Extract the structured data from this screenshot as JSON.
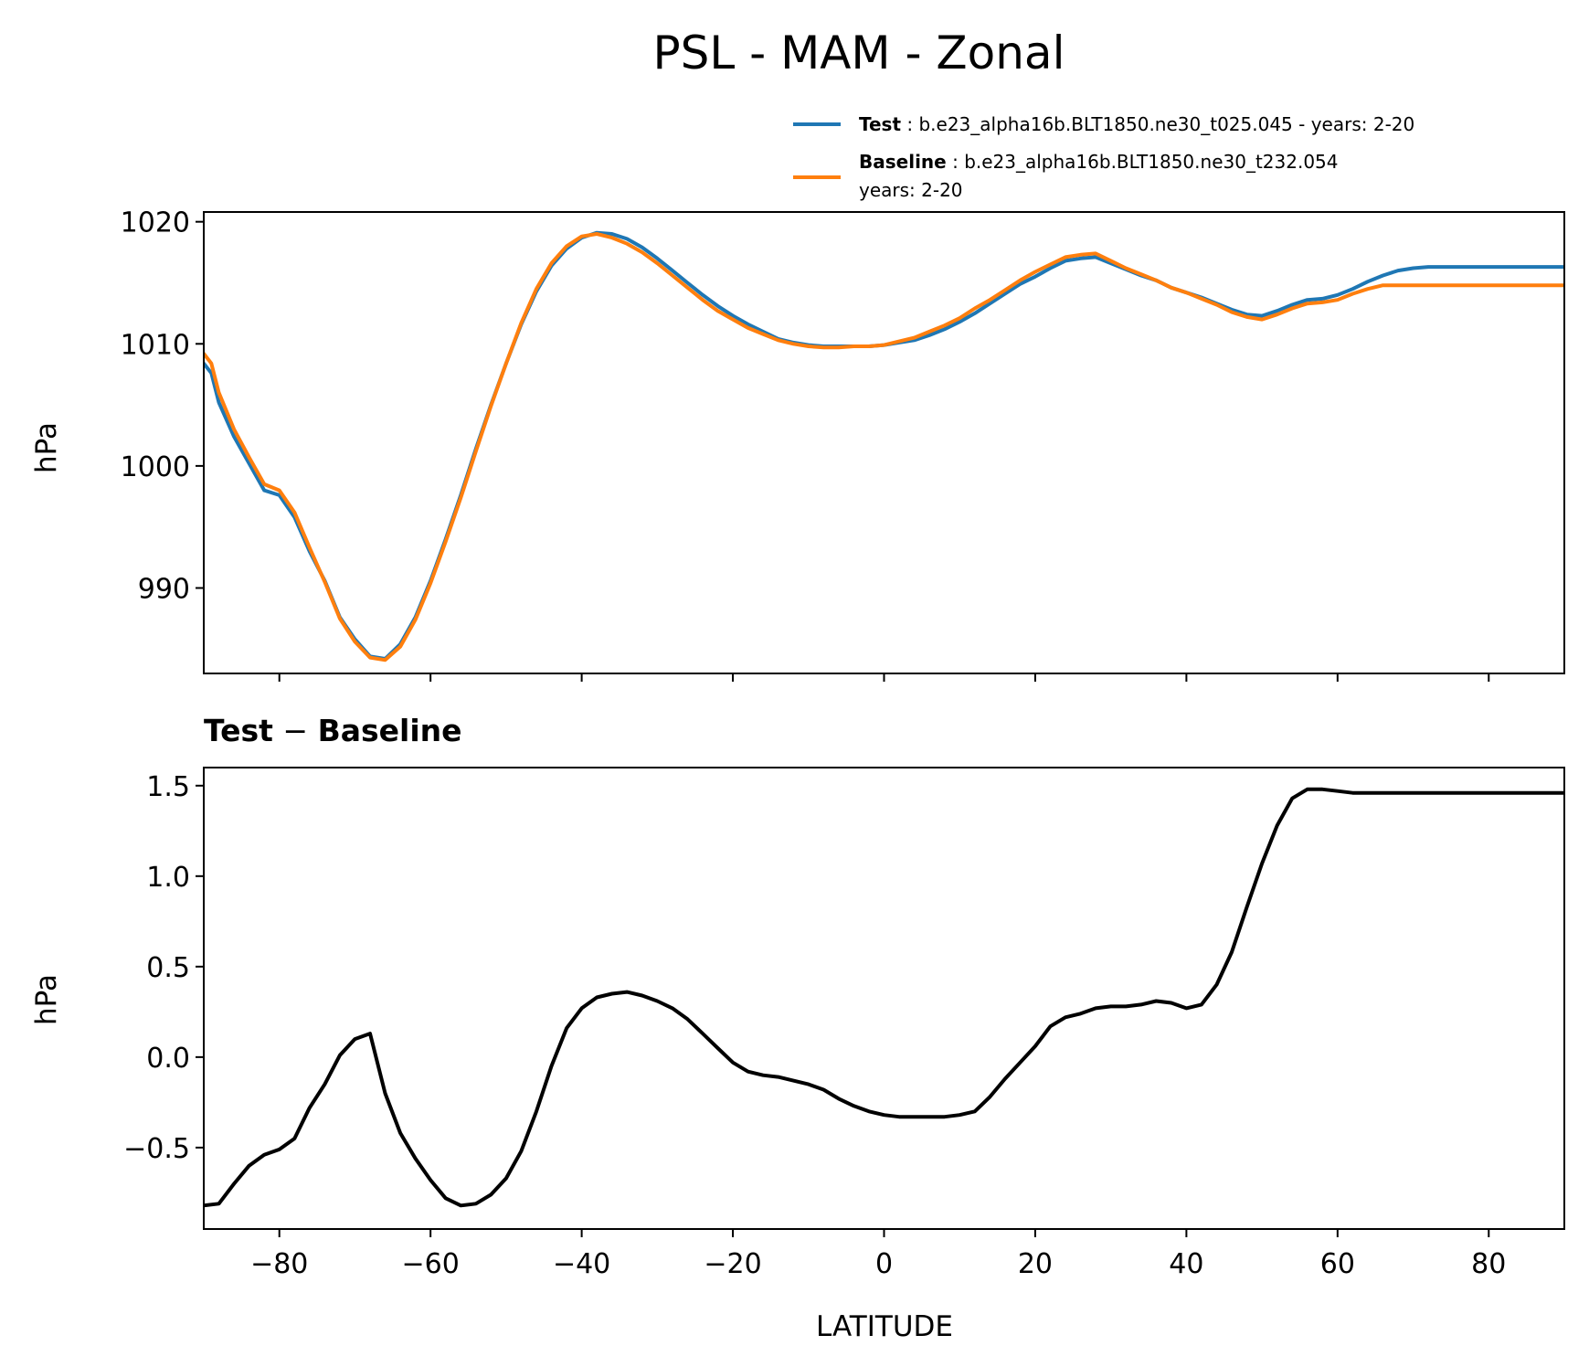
{
  "figure": {
    "title": "PSL - MAM - Zonal"
  },
  "legend": {
    "test": {
      "bold": "Test",
      "sep": " : ",
      "text": "b.e23_alpha16b.BLT1850.ne30_t025.045 - years: 2-20",
      "color": "#1f77b4"
    },
    "baseline": {
      "bold": "Baseline",
      "sep": " : ",
      "text": "b.e23_alpha16b.BLT1850.ne30_t232.054",
      "text2": "years: 2-20",
      "color": "#ff7f0e"
    }
  },
  "chart_data": [
    {
      "type": "line",
      "title": "",
      "xlabel": "",
      "ylabel": "hPa",
      "xlim": [
        -90,
        90
      ],
      "ylim": [
        983,
        1020.8
      ],
      "yticks": [
        990,
        1000,
        1010,
        1020
      ],
      "xticks": [
        -80,
        -60,
        -40,
        -20,
        0,
        20,
        40,
        60,
        80
      ],
      "x": [
        -90,
        -89,
        -88,
        -86,
        -84,
        -82,
        -80,
        -78,
        -76,
        -74,
        -72,
        -70,
        -68,
        -66,
        -64,
        -62,
        -60,
        -58,
        -56,
        -54,
        -52,
        -50,
        -48,
        -46,
        -44,
        -42,
        -40,
        -38,
        -36,
        -34,
        -32,
        -30,
        -28,
        -26,
        -24,
        -22,
        -20,
        -18,
        -16,
        -14,
        -12,
        -10,
        -8,
        -6,
        -4,
        -2,
        0,
        2,
        4,
        6,
        8,
        10,
        12,
        14,
        16,
        18,
        20,
        22,
        24,
        26,
        28,
        30,
        32,
        34,
        36,
        38,
        40,
        42,
        44,
        46,
        48,
        50,
        52,
        54,
        56,
        58,
        60,
        62,
        64,
        66,
        68,
        70,
        72,
        74,
        76,
        78,
        80,
        82,
        84,
        86,
        88,
        90
      ],
      "series": [
        {
          "name": "Test",
          "color": "#1f77b4",
          "values": [
            1008.4,
            1007.6,
            1005.2,
            1002.4,
            1000.2,
            998.0,
            997.6,
            995.8,
            993.0,
            990.6,
            987.6,
            985.8,
            984.4,
            984.2,
            985.4,
            987.6,
            990.6,
            994.0,
            997.6,
            1001.4,
            1005.0,
            1008.4,
            1011.6,
            1014.3,
            1016.4,
            1017.8,
            1018.7,
            1019.1,
            1019.0,
            1018.6,
            1017.9,
            1017.0,
            1016.0,
            1015.0,
            1014.0,
            1013.1,
            1012.3,
            1011.6,
            1011.0,
            1010.4,
            1010.1,
            1009.9,
            1009.8,
            1009.8,
            1009.8,
            1009.8,
            1009.9,
            1010.1,
            1010.3,
            1010.7,
            1011.2,
            1011.8,
            1012.5,
            1013.3,
            1014.1,
            1014.9,
            1015.5,
            1016.2,
            1016.8,
            1017.0,
            1017.1,
            1016.6,
            1016.1,
            1015.6,
            1015.2,
            1014.6,
            1014.2,
            1013.8,
            1013.3,
            1012.8,
            1012.4,
            1012.3,
            1012.7,
            1013.2,
            1013.6,
            1013.7,
            1014.0,
            1014.5,
            1015.1,
            1015.6,
            1016.0,
            1016.2,
            1016.3,
            1016.3,
            1016.3,
            1016.3,
            1016.3,
            1016.3,
            1016.3,
            1016.3,
            1016.3,
            1016.3
          ]
        },
        {
          "name": "Baseline",
          "color": "#ff7f0e",
          "values": [
            1009.2,
            1008.4,
            1006.0,
            1003.0,
            1000.7,
            998.5,
            998.0,
            996.2,
            993.3,
            990.5,
            987.5,
            985.6,
            984.3,
            984.1,
            985.2,
            987.4,
            990.4,
            993.8,
            997.4,
            1001.2,
            1004.9,
            1008.4,
            1011.7,
            1014.5,
            1016.6,
            1018.0,
            1018.8,
            1019.0,
            1018.7,
            1018.2,
            1017.5,
            1016.6,
            1015.6,
            1014.6,
            1013.6,
            1012.7,
            1012.0,
            1011.3,
            1010.8,
            1010.3,
            1010.0,
            1009.8,
            1009.7,
            1009.7,
            1009.8,
            1009.8,
            1009.9,
            1010.2,
            1010.5,
            1011.0,
            1011.5,
            1012.1,
            1012.9,
            1013.6,
            1014.4,
            1015.2,
            1015.9,
            1016.5,
            1017.1,
            1017.3,
            1017.4,
            1016.8,
            1016.2,
            1015.7,
            1015.2,
            1014.6,
            1014.2,
            1013.7,
            1013.2,
            1012.6,
            1012.2,
            1012.0,
            1012.4,
            1012.9,
            1013.3,
            1013.4,
            1013.6,
            1014.1,
            1014.5,
            1014.8,
            1014.8,
            1014.8,
            1014.8,
            1014.8,
            1014.8,
            1014.8,
            1014.8,
            1014.8,
            1014.8,
            1014.8,
            1014.8,
            1014.8
          ]
        }
      ]
    },
    {
      "type": "line",
      "title_bold": "Test",
      "title_sep": " − ",
      "title_bold2": "Baseline",
      "xlabel": "LATITUDE",
      "ylabel": "hPa",
      "xlim": [
        -90,
        90
      ],
      "ylim": [
        -0.95,
        1.6
      ],
      "yticks": [
        -0.5,
        0.0,
        0.5,
        1.0,
        1.5
      ],
      "ytick_labels": [
        "−0.5",
        "0.0",
        "0.5",
        "1.0",
        "1.5"
      ],
      "xticks": [
        -80,
        -60,
        -40,
        -20,
        0,
        20,
        40,
        60,
        80
      ],
      "xtick_labels": [
        "−80",
        "−60",
        "−40",
        "−20",
        "0",
        "20",
        "40",
        "60",
        "80"
      ],
      "x": [
        -90,
        -88,
        -86,
        -84,
        -82,
        -80,
        -78,
        -76,
        -74,
        -72,
        -70,
        -68,
        -66,
        -64,
        -62,
        -60,
        -58,
        -56,
        -54,
        -52,
        -50,
        -48,
        -46,
        -44,
        -42,
        -40,
        -38,
        -36,
        -34,
        -32,
        -30,
        -28,
        -26,
        -24,
        -22,
        -20,
        -18,
        -16,
        -14,
        -12,
        -10,
        -8,
        -6,
        -4,
        -2,
        0,
        2,
        4,
        6,
        8,
        10,
        12,
        14,
        16,
        18,
        20,
        22,
        24,
        26,
        28,
        30,
        32,
        34,
        36,
        38,
        40,
        42,
        44,
        46,
        48,
        50,
        52,
        54,
        56,
        58,
        60,
        62,
        64,
        66,
        68,
        70,
        72,
        74,
        76,
        78,
        80,
        82,
        84,
        86,
        88,
        90
      ],
      "series": [
        {
          "name": "",
          "color": "#000000",
          "values": [
            -0.82,
            -0.81,
            -0.7,
            -0.6,
            -0.54,
            -0.51,
            -0.45,
            -0.28,
            -0.15,
            0.01,
            0.1,
            0.13,
            -0.2,
            -0.42,
            -0.56,
            -0.68,
            -0.78,
            -0.82,
            -0.81,
            -0.76,
            -0.67,
            -0.52,
            -0.3,
            -0.05,
            0.16,
            0.27,
            0.33,
            0.35,
            0.36,
            0.34,
            0.31,
            0.27,
            0.21,
            0.13,
            0.05,
            -0.03,
            -0.08,
            -0.1,
            -0.11,
            -0.13,
            -0.15,
            -0.18,
            -0.23,
            -0.27,
            -0.3,
            -0.32,
            -0.33,
            -0.33,
            -0.33,
            -0.33,
            -0.32,
            -0.3,
            -0.22,
            -0.12,
            -0.03,
            0.06,
            0.17,
            0.22,
            0.24,
            0.27,
            0.28,
            0.28,
            0.29,
            0.31,
            0.3,
            0.27,
            0.29,
            0.4,
            0.58,
            0.83,
            1.07,
            1.28,
            1.43,
            1.48,
            1.48,
            1.47,
            1.46,
            1.46,
            1.46,
            1.46,
            1.46,
            1.46,
            1.46,
            1.46,
            1.46,
            1.46,
            1.46,
            1.46,
            1.46,
            1.46,
            1.46
          ]
        }
      ]
    }
  ]
}
